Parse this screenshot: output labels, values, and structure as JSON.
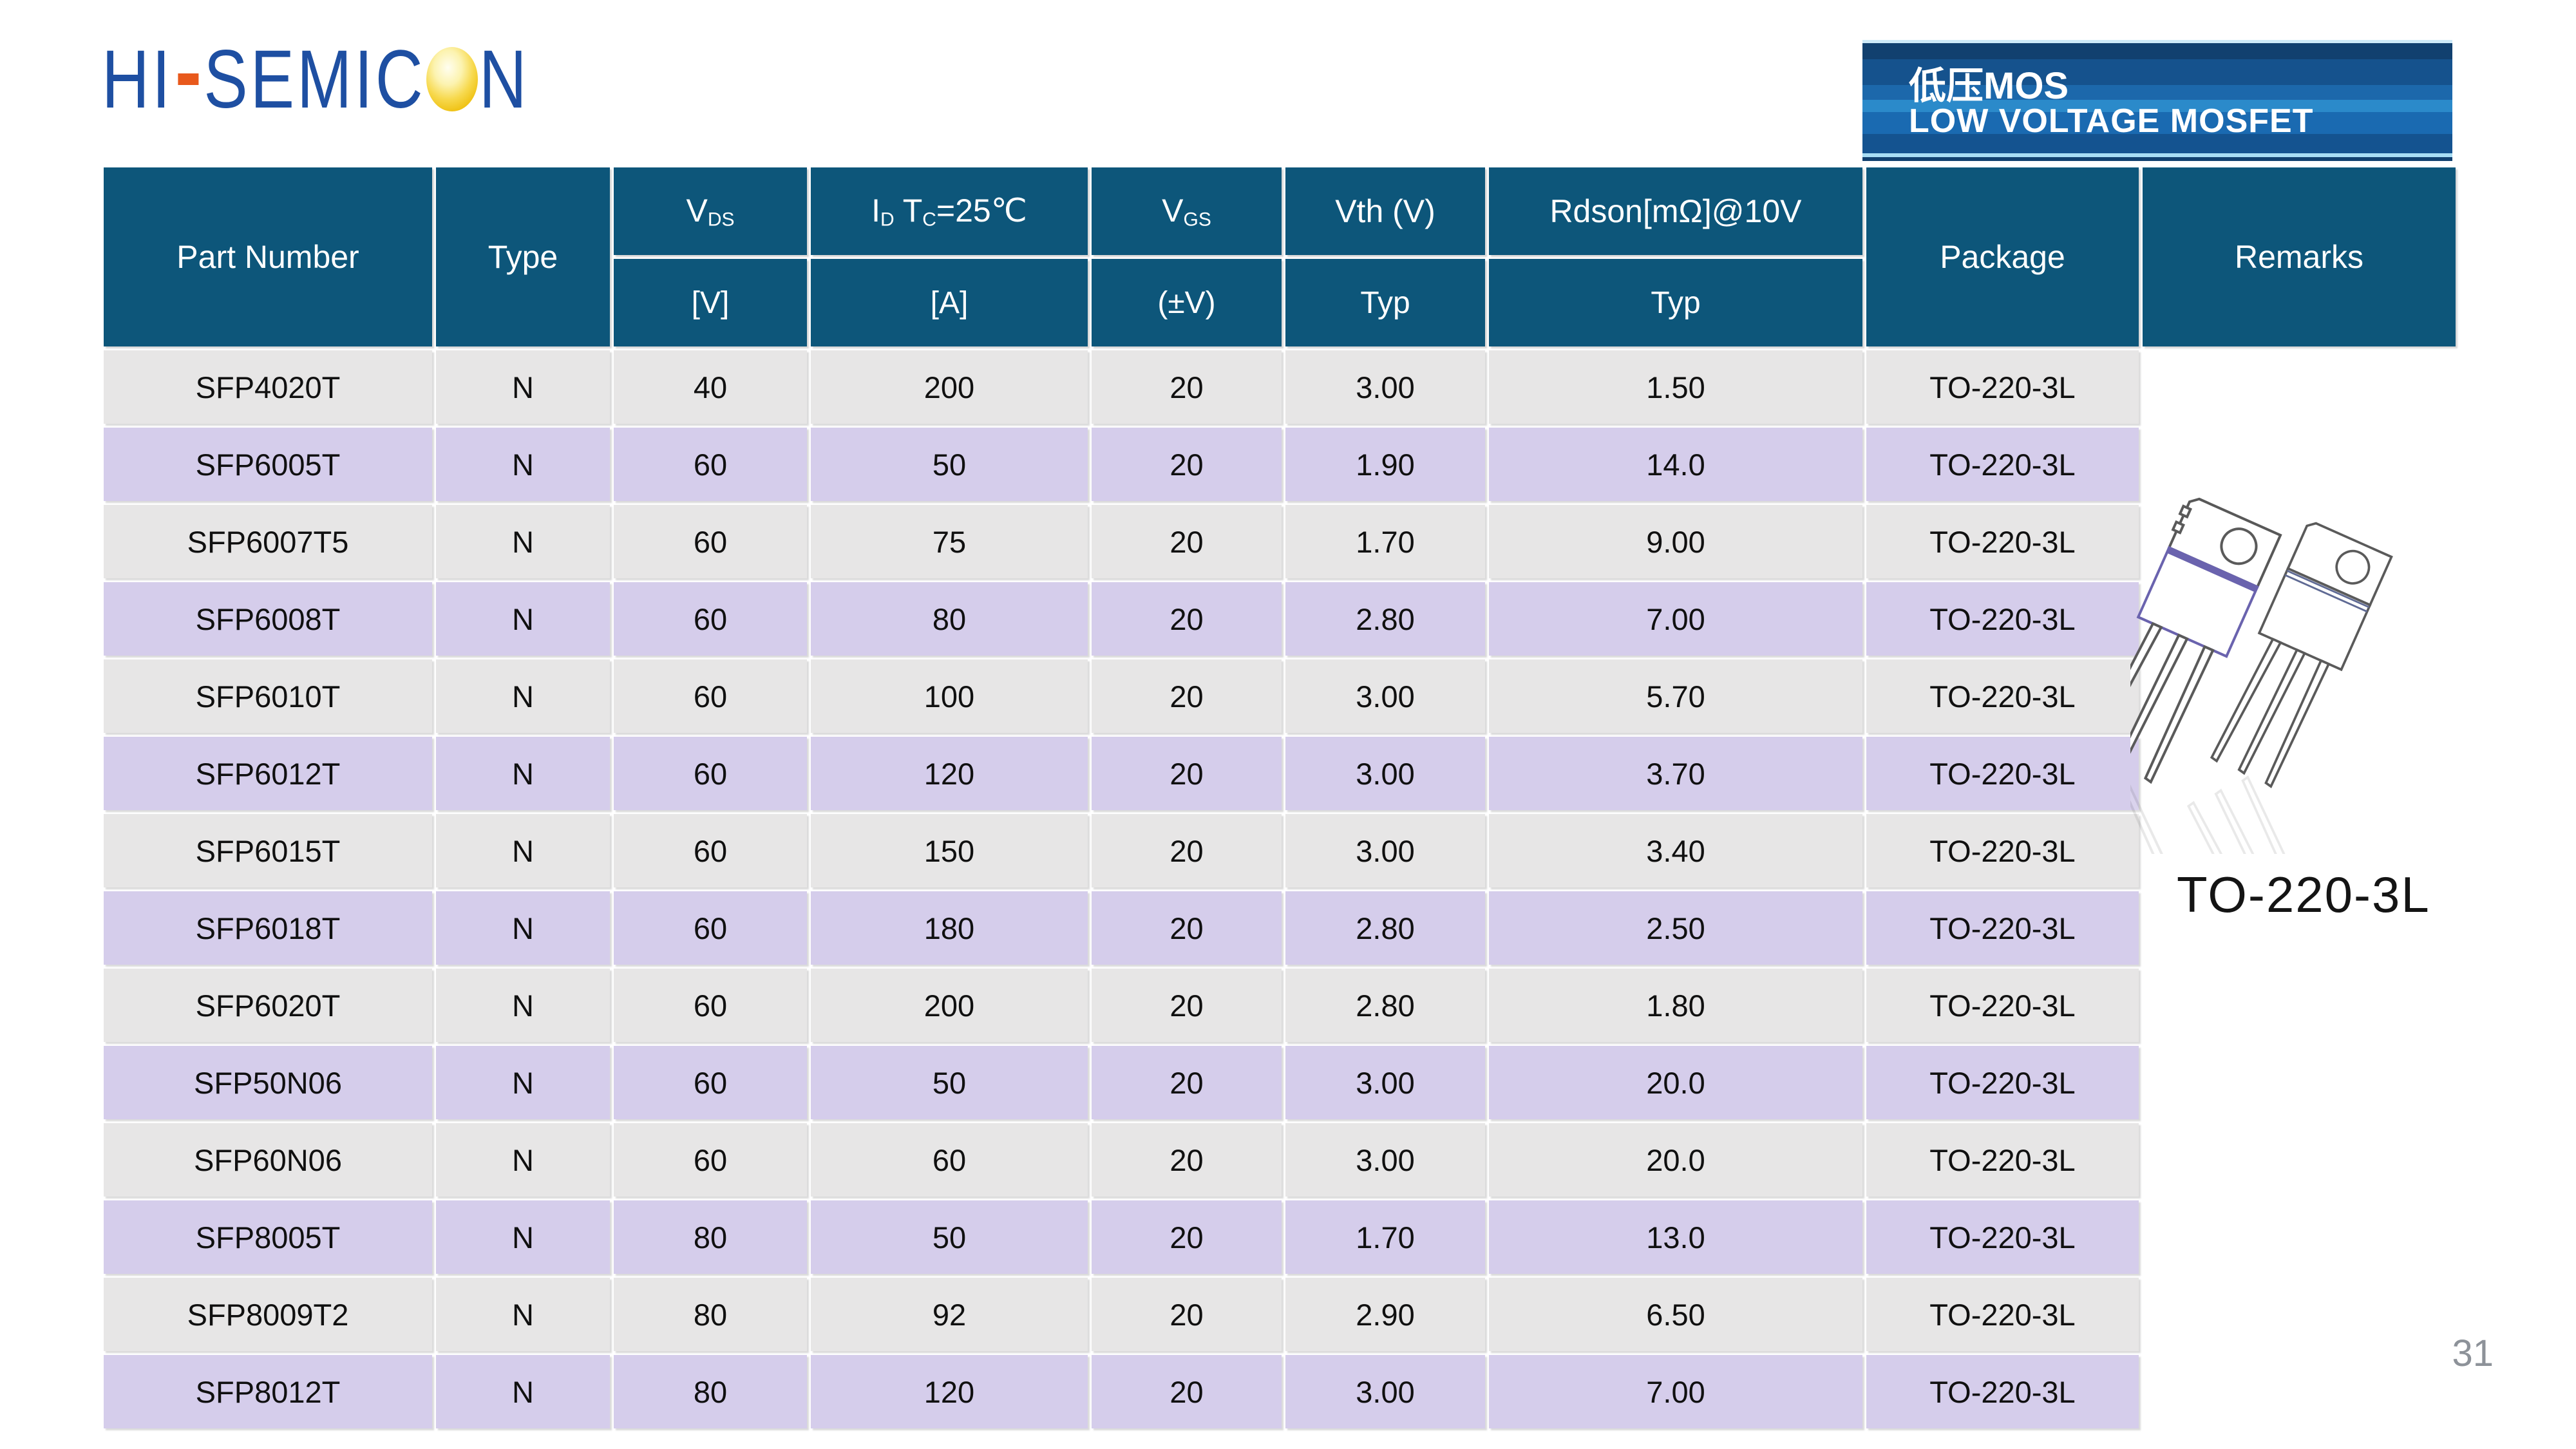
{
  "logo": {
    "part1": "HI",
    "part2": "SEMIC",
    "part3": "N"
  },
  "banner": {
    "title_cn": "低压MOS",
    "title_en": "LOW VOLTAGE MOSFET"
  },
  "table": {
    "headers": {
      "part_number": "Part Number",
      "type": "Type",
      "vds_main": "V",
      "vds_sub": "DS",
      "vds_unit": "[V]",
      "id_p1": "I",
      "id_s1": "D",
      "id_p2": " T",
      "id_s2": "C",
      "id_p3": "=25℃",
      "id_unit": "[A]",
      "vgs_main": "V",
      "vgs_sub": "GS",
      "vgs_unit": "(±V)",
      "vth": "Vth (V)",
      "vth_unit": "Typ",
      "rdson": "Rdson[mΩ]@10V",
      "rdson_unit": "Typ",
      "package": "Package",
      "remarks": "Remarks"
    },
    "row_keys": [
      "part",
      "type",
      "vds",
      "id",
      "vgs",
      "vth",
      "rdson",
      "pkg"
    ],
    "rows": [
      {
        "part": "SFP4020T",
        "type": "N",
        "vds": "40",
        "id": "200",
        "vgs": "20",
        "vth": "3.00",
        "rdson": "1.50",
        "pkg": "TO-220-3L"
      },
      {
        "part": "SFP6005T",
        "type": "N",
        "vds": "60",
        "id": "50",
        "vgs": "20",
        "vth": "1.90",
        "rdson": "14.0",
        "pkg": "TO-220-3L"
      },
      {
        "part": "SFP6007T5",
        "type": "N",
        "vds": "60",
        "id": "75",
        "vgs": "20",
        "vth": "1.70",
        "rdson": "9.00",
        "pkg": "TO-220-3L"
      },
      {
        "part": "SFP6008T",
        "type": "N",
        "vds": "60",
        "id": "80",
        "vgs": "20",
        "vth": "2.80",
        "rdson": "7.00",
        "pkg": "TO-220-3L"
      },
      {
        "part": "SFP6010T",
        "type": "N",
        "vds": "60",
        "id": "100",
        "vgs": "20",
        "vth": "3.00",
        "rdson": "5.70",
        "pkg": "TO-220-3L"
      },
      {
        "part": "SFP6012T",
        "type": "N",
        "vds": "60",
        "id": "120",
        "vgs": "20",
        "vth": "3.00",
        "rdson": "3.70",
        "pkg": "TO-220-3L"
      },
      {
        "part": "SFP6015T",
        "type": "N",
        "vds": "60",
        "id": "150",
        "vgs": "20",
        "vth": "3.00",
        "rdson": "3.40",
        "pkg": "TO-220-3L"
      },
      {
        "part": "SFP6018T",
        "type": "N",
        "vds": "60",
        "id": "180",
        "vgs": "20",
        "vth": "2.80",
        "rdson": "2.50",
        "pkg": "TO-220-3L"
      },
      {
        "part": "SFP6020T",
        "type": "N",
        "vds": "60",
        "id": "200",
        "vgs": "20",
        "vth": "2.80",
        "rdson": "1.80",
        "pkg": "TO-220-3L"
      },
      {
        "part": "SFP50N06",
        "type": "N",
        "vds": "60",
        "id": "50",
        "vgs": "20",
        "vth": "3.00",
        "rdson": "20.0",
        "pkg": "TO-220-3L"
      },
      {
        "part": "SFP60N06",
        "type": "N",
        "vds": "60",
        "id": "60",
        "vgs": "20",
        "vth": "3.00",
        "rdson": "20.0",
        "pkg": "TO-220-3L"
      },
      {
        "part": "SFP8005T",
        "type": "N",
        "vds": "80",
        "id": "50",
        "vgs": "20",
        "vth": "1.70",
        "rdson": "13.0",
        "pkg": "TO-220-3L"
      },
      {
        "part": "SFP8009T2",
        "type": "N",
        "vds": "80",
        "id": "92",
        "vgs": "20",
        "vth": "2.90",
        "rdson": "6.50",
        "pkg": "TO-220-3L"
      },
      {
        "part": "SFP8012T",
        "type": "N",
        "vds": "80",
        "id": "120",
        "vgs": "20",
        "vth": "3.00",
        "rdson": "7.00",
        "pkg": "TO-220-3L"
      }
    ]
  },
  "figure": {
    "label": "TO-220-3L"
  },
  "page_number": "31",
  "colors": {
    "header_bg": "#0d567a",
    "row_gray": "#e7e6e6",
    "row_lavender": "#d5cdeb",
    "logo_blue": "#1e4fa2",
    "logo_orange": "#e8591c",
    "logo_ball_gold": "#efc112",
    "banner_dark_blue": "#11406f",
    "banner_mid_blue": "#1a6ab1",
    "banner_light_blue": "#2b8aca",
    "page_number_gray": "#8d9299"
  }
}
